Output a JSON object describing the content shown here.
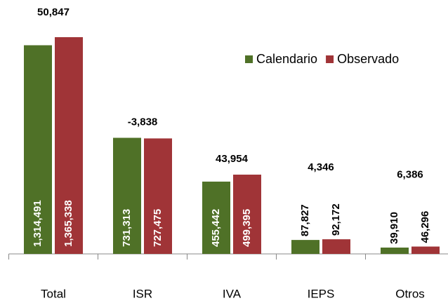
{
  "chart_data": {
    "type": "bar",
    "categories": [
      "Total",
      "ISR",
      "IVA",
      "IEPS",
      "Otros"
    ],
    "series": [
      {
        "name": "Calendario",
        "color": "#4f7127",
        "values": [
          1314491,
          731313,
          455442,
          87827,
          39910
        ],
        "value_labels": [
          "1,314,491",
          "731,313",
          "455,442",
          "87,827",
          "39,910"
        ]
      },
      {
        "name": "Observado",
        "color": "#a03437",
        "values": [
          1365338,
          727475,
          499395,
          92172,
          46296
        ],
        "value_labels": [
          "1,365,338",
          "727,475",
          "499,395",
          "92,172",
          "46,296"
        ]
      }
    ],
    "differences": {
      "values": [
        50847,
        -3838,
        43954,
        4346,
        6386
      ],
      "value_labels": [
        "50,847",
        "-3,838",
        "43,954",
        "4,346",
        "6,386"
      ]
    },
    "legend": "upper right"
  }
}
